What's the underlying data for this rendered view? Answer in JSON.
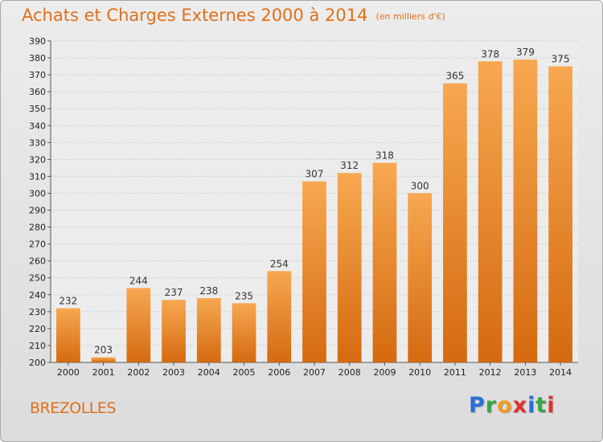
{
  "header": {
    "title": "Achats et Charges Externes 2000 à 2014",
    "unit": "(en milliers d'€)"
  },
  "footer": {
    "city": "BREZOLLES",
    "logo_letters": [
      "P",
      "r",
      "o",
      "x",
      "i",
      "t",
      "i"
    ],
    "logo_colors": [
      "#2a6fd6",
      "#3aa64b",
      "#f19a1f",
      "#e03131",
      "#2a6fd6",
      "#3aa64b",
      "#e03131"
    ]
  },
  "colors": {
    "title": "#e0701a",
    "bar_light": "#f7a850",
    "bar_dark": "#d56a10",
    "grid": "#bfbfbf"
  },
  "chart_data": {
    "type": "bar",
    "categories": [
      "2000",
      "2001",
      "2002",
      "2003",
      "2004",
      "2005",
      "2006",
      "2007",
      "2008",
      "2009",
      "2010",
      "2011",
      "2012",
      "2013",
      "2014"
    ],
    "values": [
      232,
      203,
      244,
      237,
      238,
      235,
      254,
      307,
      312,
      318,
      300,
      365,
      378,
      379,
      375
    ],
    "ylim": [
      200,
      390
    ],
    "ytick_step": 10,
    "grid": true,
    "data_labels": true
  }
}
